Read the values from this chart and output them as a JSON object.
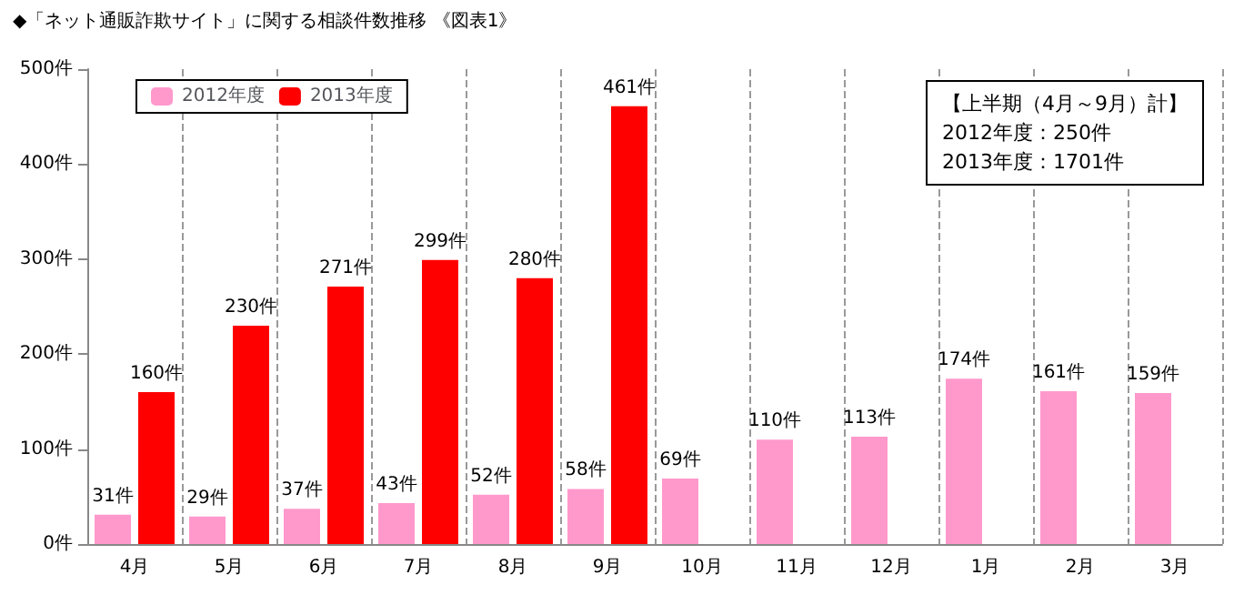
{
  "chart_data": {
    "type": "bar",
    "title": "◆「ネット通販詐欺サイト」に関する相談件数推移 《図表1》",
    "categories": [
      "4月",
      "5月",
      "6月",
      "7月",
      "8月",
      "9月",
      "10月",
      "11月",
      "12月",
      "1月",
      "2月",
      "3月"
    ],
    "series": [
      {
        "name": "2012年度",
        "color": "#ff99cc",
        "values": [
          31,
          29,
          37,
          43,
          52,
          58,
          69,
          110,
          113,
          174,
          161,
          159
        ],
        "value_labels": [
          "31件",
          "29件",
          "37件",
          "43件",
          "52件",
          "58件",
          "69件",
          "110件",
          "113件",
          "174件",
          "161件",
          "159件"
        ]
      },
      {
        "name": "2013年度",
        "color": "#ff0000",
        "values": [
          160,
          230,
          271,
          299,
          280,
          461,
          null,
          null,
          null,
          null,
          null,
          null
        ],
        "value_labels": [
          "160件",
          "230件",
          "271件",
          "299件",
          "280件",
          "461件",
          null,
          null,
          null,
          null,
          null,
          null
        ]
      }
    ],
    "ylim": [
      0,
      500
    ],
    "yticks": [
      {
        "value": 0,
        "label": "0件"
      },
      {
        "value": 100,
        "label": "100件"
      },
      {
        "value": 200,
        "label": "200件"
      },
      {
        "value": 300,
        "label": "300件"
      },
      {
        "value": 400,
        "label": "400件"
      },
      {
        "value": 500,
        "label": "500件"
      }
    ],
    "grid": "x",
    "legend": "top left",
    "annotations": [
      "【上半期（4月～9月）計】",
      "2012年度：250件",
      "2013年度：1701件"
    ]
  }
}
